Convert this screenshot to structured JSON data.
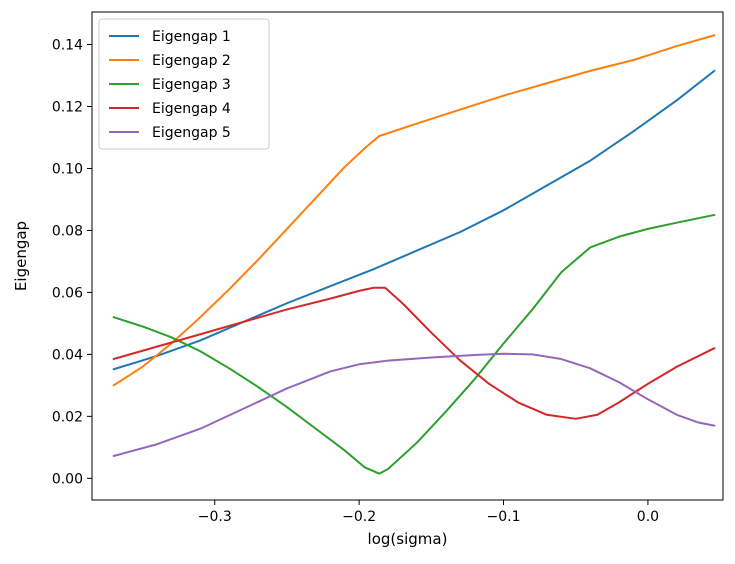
{
  "chart_data": {
    "type": "line",
    "title": "",
    "xlabel": "log(sigma)",
    "ylabel": "Eigengap",
    "xlim": [
      -0.385,
      0.052
    ],
    "ylim": [
      -0.007,
      0.1505
    ],
    "xticks": [
      -0.3,
      -0.2,
      -0.1,
      0.0
    ],
    "xtick_labels": [
      "−0.3",
      "−0.2",
      "−0.1",
      "0.0"
    ],
    "yticks": [
      0.0,
      0.02,
      0.04,
      0.06,
      0.08,
      0.1,
      0.12,
      0.14
    ],
    "ytick_labels": [
      "0.00",
      "0.02",
      "0.04",
      "0.06",
      "0.08",
      "0.10",
      "0.12",
      "0.14"
    ],
    "grid": false,
    "legend_position": "top-left",
    "series": [
      {
        "name": "Eigengap 1",
        "color": "#1f77b4",
        "points": [
          [
            -0.37,
            0.0352
          ],
          [
            -0.34,
            0.0395
          ],
          [
            -0.31,
            0.0445
          ],
          [
            -0.28,
            0.0505
          ],
          [
            -0.25,
            0.0565
          ],
          [
            -0.22,
            0.062
          ],
          [
            -0.19,
            0.0675
          ],
          [
            -0.16,
            0.0735
          ],
          [
            -0.13,
            0.0795
          ],
          [
            -0.1,
            0.0865
          ],
          [
            -0.07,
            0.0945
          ],
          [
            -0.04,
            0.1025
          ],
          [
            -0.01,
            0.112
          ],
          [
            0.02,
            0.122
          ],
          [
            0.046,
            0.1315
          ]
        ]
      },
      {
        "name": "Eigengap 2",
        "color": "#ff7f0e",
        "points": [
          [
            -0.37,
            0.03
          ],
          [
            -0.35,
            0.036
          ],
          [
            -0.33,
            0.0435
          ],
          [
            -0.31,
            0.052
          ],
          [
            -0.29,
            0.061
          ],
          [
            -0.27,
            0.0705
          ],
          [
            -0.25,
            0.0805
          ],
          [
            -0.23,
            0.0905
          ],
          [
            -0.21,
            0.1005
          ],
          [
            -0.195,
            0.107
          ],
          [
            -0.186,
            0.1105
          ],
          [
            -0.16,
            0.1145
          ],
          [
            -0.13,
            0.119
          ],
          [
            -0.1,
            0.1235
          ],
          [
            -0.07,
            0.1275
          ],
          [
            -0.04,
            0.1315
          ],
          [
            -0.01,
            0.135
          ],
          [
            0.02,
            0.1395
          ],
          [
            0.046,
            0.143
          ]
        ]
      },
      {
        "name": "Eigengap 3",
        "color": "#2ca02c",
        "points": [
          [
            -0.37,
            0.052
          ],
          [
            -0.35,
            0.049
          ],
          [
            -0.33,
            0.0455
          ],
          [
            -0.31,
            0.041
          ],
          [
            -0.29,
            0.0355
          ],
          [
            -0.27,
            0.0295
          ],
          [
            -0.25,
            0.023
          ],
          [
            -0.23,
            0.016
          ],
          [
            -0.21,
            0.009
          ],
          [
            -0.196,
            0.0035
          ],
          [
            -0.186,
            0.0015
          ],
          [
            -0.18,
            0.003
          ],
          [
            -0.16,
            0.0115
          ],
          [
            -0.14,
            0.0215
          ],
          [
            -0.12,
            0.032
          ],
          [
            -0.1,
            0.0435
          ],
          [
            -0.08,
            0.0545
          ],
          [
            -0.06,
            0.0665
          ],
          [
            -0.04,
            0.0745
          ],
          [
            -0.02,
            0.078
          ],
          [
            0.0,
            0.0805
          ],
          [
            0.02,
            0.0825
          ],
          [
            0.046,
            0.085
          ]
        ]
      },
      {
        "name": "Eigengap 4",
        "color": "#d62728",
        "points": [
          [
            -0.37,
            0.0385
          ],
          [
            -0.34,
            0.0425
          ],
          [
            -0.31,
            0.0465
          ],
          [
            -0.28,
            0.0505
          ],
          [
            -0.25,
            0.0545
          ],
          [
            -0.22,
            0.058
          ],
          [
            -0.2,
            0.0605
          ],
          [
            -0.19,
            0.0615
          ],
          [
            -0.182,
            0.0615
          ],
          [
            -0.17,
            0.0565
          ],
          [
            -0.15,
            0.047
          ],
          [
            -0.13,
            0.038
          ],
          [
            -0.11,
            0.0305
          ],
          [
            -0.09,
            0.0245
          ],
          [
            -0.07,
            0.0205
          ],
          [
            -0.05,
            0.0192
          ],
          [
            -0.035,
            0.0205
          ],
          [
            -0.02,
            0.0245
          ],
          [
            0.0,
            0.0305
          ],
          [
            0.02,
            0.036
          ],
          [
            0.046,
            0.042
          ]
        ]
      },
      {
        "name": "Eigengap 5",
        "color": "#9467bd",
        "points": [
          [
            -0.37,
            0.0072
          ],
          [
            -0.34,
            0.011
          ],
          [
            -0.31,
            0.016
          ],
          [
            -0.28,
            0.0225
          ],
          [
            -0.25,
            0.029
          ],
          [
            -0.22,
            0.0345
          ],
          [
            -0.2,
            0.0368
          ],
          [
            -0.18,
            0.038
          ],
          [
            -0.15,
            0.039
          ],
          [
            -0.12,
            0.0398
          ],
          [
            -0.1,
            0.0402
          ],
          [
            -0.08,
            0.04
          ],
          [
            -0.06,
            0.0385
          ],
          [
            -0.04,
            0.0355
          ],
          [
            -0.02,
            0.031
          ],
          [
            0.0,
            0.0255
          ],
          [
            0.02,
            0.0205
          ],
          [
            0.035,
            0.018
          ],
          [
            0.046,
            0.017
          ]
        ]
      }
    ]
  }
}
